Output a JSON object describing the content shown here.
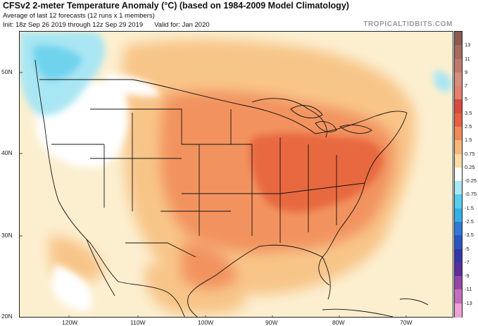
{
  "header": {
    "title": "CFSv2 2-meter Temperature Anomaly (°C) (based on 1984-2009 Model Climatology)",
    "subtitle": "Average of last 12 forecasts (12 runs x 1 members)",
    "init": "Init: 18z Sep 26 2019 through 12z Sep 29 2019",
    "valid": "Valid for: Jan 2020",
    "brand": "TROPICALTIDBITS.COM"
  },
  "map": {
    "lat_labels": [
      "50N",
      "40N",
      "30N",
      "20N"
    ],
    "lon_labels": [
      "120W",
      "110W",
      "100W",
      "90W",
      "80W",
      "70W"
    ]
  },
  "colorbar": {
    "labels": [
      "13",
      "11",
      "9",
      "7",
      "5",
      "3.5",
      "2.5",
      "1.5",
      "0.75",
      "0.25",
      "-0.25",
      "-0.75",
      "-1.5",
      "-2.5",
      "-3.5",
      "-5",
      "-7",
      "-9",
      "-11",
      "-13"
    ],
    "colors": [
      "#8c5a52",
      "#a8695f",
      "#c07a6c",
      "#d58d7e",
      "#e47f6e",
      "#d94a3c",
      "#e8603f",
      "#f08a55",
      "#f6b77a",
      "#fbdda5",
      "#ffffff",
      "#a8e9f5",
      "#55cfee",
      "#33b0e6",
      "#2f7ad8",
      "#2b55c5",
      "#3437a8",
      "#5a2f9a",
      "#9447a8",
      "#c56dbe",
      "#eaa3d4"
    ]
  }
}
